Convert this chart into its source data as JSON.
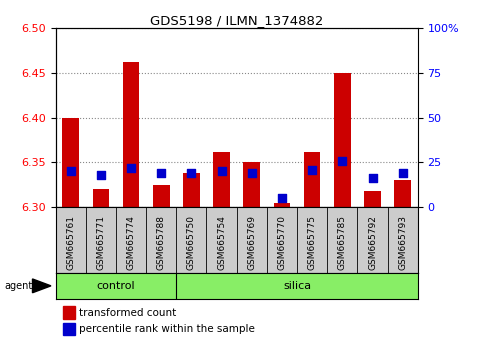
{
  "title": "GDS5198 / ILMN_1374882",
  "samples": [
    "GSM665761",
    "GSM665771",
    "GSM665774",
    "GSM665788",
    "GSM665750",
    "GSM665754",
    "GSM665769",
    "GSM665770",
    "GSM665775",
    "GSM665785",
    "GSM665792",
    "GSM665793"
  ],
  "groups": [
    "control",
    "control",
    "control",
    "control",
    "silica",
    "silica",
    "silica",
    "silica",
    "silica",
    "silica",
    "silica",
    "silica"
  ],
  "red_values": [
    6.4,
    6.32,
    6.462,
    6.325,
    6.338,
    6.362,
    6.35,
    6.305,
    6.362,
    6.45,
    6.318,
    6.33
  ],
  "blue_values": [
    20,
    18,
    22,
    19,
    19,
    20,
    19,
    5,
    21,
    26,
    16,
    19
  ],
  "ymin": 6.3,
  "ymax": 6.5,
  "y2min": 0,
  "y2max": 100,
  "yticks": [
    6.3,
    6.35,
    6.4,
    6.45,
    6.5
  ],
  "y2ticks": [
    0,
    25,
    50,
    75,
    100
  ],
  "y2ticklabels": [
    "0",
    "25",
    "50",
    "75",
    "100%"
  ],
  "bar_color": "#cc0000",
  "blue_color": "#0000cc",
  "control_color": "#88ee66",
  "silica_color": "#88ee66",
  "bar_base": 6.3,
  "bar_width": 0.55,
  "blue_dot_size": 40,
  "grid_style": "dotted",
  "grid_color": "#888888",
  "tick_bg_color": "#cccccc",
  "n_control": 4,
  "n_total": 12
}
